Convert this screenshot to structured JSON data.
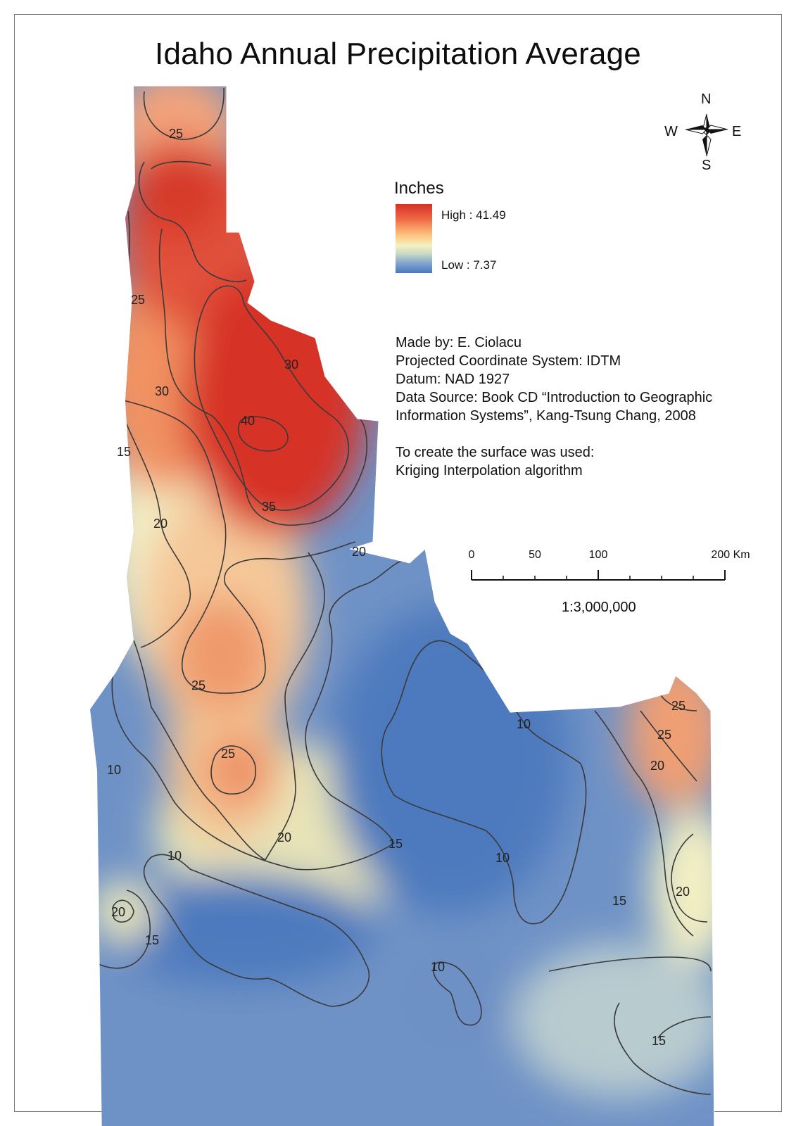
{
  "map": {
    "title": "Idaho Annual Precipitation Average",
    "legend": {
      "title": "Inches",
      "high_label": "High : 41.49",
      "low_label": "Low : 7.37",
      "high_value": 41.49,
      "low_value": 7.37,
      "ramp_colors": [
        "#d73027",
        "#ef6a45",
        "#fdc47f",
        "#f4f1c1",
        "#c9d9c4",
        "#7fa4cf",
        "#4a77bd"
      ]
    },
    "credits": {
      "made_by": "Made by: E. Ciolacu",
      "projection": "Projected Coordinate System: IDTM",
      "datum": "Datum: NAD 1927",
      "source_line1": "Data Source: Book CD “Introduction to Geographic",
      "source_line2": "Information Systems”, Kang-Tsung Chang, 2008",
      "method_line1": "To create the surface was used:",
      "method_line2": "Kriging Interpolation algorithm"
    },
    "compass": {
      "n": "N",
      "s": "S",
      "e": "E",
      "w": "W"
    },
    "scalebar": {
      "labels": [
        "0",
        "50",
        "100",
        "200 Km"
      ],
      "ratio": "1:3,000,000"
    },
    "contour_labels": [
      "25",
      "25",
      "30",
      "30",
      "40",
      "35",
      "15",
      "20",
      "20",
      "25",
      "25",
      "10",
      "20",
      "15",
      "10",
      "10",
      "10",
      "20",
      "15",
      "10",
      "15",
      "25",
      "25",
      "20",
      "20",
      "15"
    ],
    "colors": {
      "high": "#d73027",
      "mid": "#f6f2c3",
      "low": "#4a77bd",
      "contour": "#3a3a3a"
    }
  }
}
